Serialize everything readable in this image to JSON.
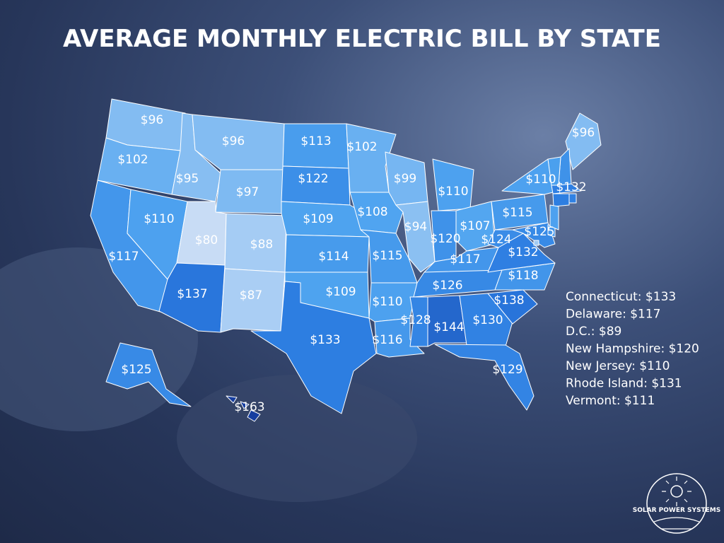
{
  "title": "AVERAGE MONTHLY ELECTRIC BILL BY STATE",
  "states": [
    {
      "label": "$96",
      "value": 96
    },
    {
      "label": "$102",
      "value": 102
    },
    {
      "label": "$117",
      "value": 117
    },
    {
      "label": "$110",
      "value": 110
    },
    {
      "label": "$95",
      "value": 95
    },
    {
      "label": "$96",
      "value": 96
    },
    {
      "label": "$97",
      "value": 97
    },
    {
      "label": "$80",
      "value": 80
    },
    {
      "label": "$88",
      "value": 88
    },
    {
      "label": "$137",
      "value": 137
    },
    {
      "label": "$87",
      "value": 87
    },
    {
      "label": "$113",
      "value": 113
    },
    {
      "label": "$122",
      "value": 122
    },
    {
      "label": "$109",
      "value": 109
    },
    {
      "label": "$114",
      "value": 114
    },
    {
      "label": "$109",
      "value": 109
    },
    {
      "label": "$133",
      "value": 133
    },
    {
      "label": "$102",
      "value": 102
    },
    {
      "label": "$108",
      "value": 108
    },
    {
      "label": "$115",
      "value": 115
    },
    {
      "label": "$110",
      "value": 110
    },
    {
      "label": "$116",
      "value": 116
    },
    {
      "label": "$99",
      "value": 99
    },
    {
      "label": "$94",
      "value": 94
    },
    {
      "label": "$110",
      "value": 110
    },
    {
      "label": "$120",
      "value": 120
    },
    {
      "label": "$107",
      "value": 107
    },
    {
      "label": "$117",
      "value": 117
    },
    {
      "label": "$126",
      "value": 126
    },
    {
      "label": "$128",
      "value": 128
    },
    {
      "label": "$144",
      "value": 144
    },
    {
      "label": "$130",
      "value": 130
    },
    {
      "label": "$129",
      "value": 129
    },
    {
      "label": "$138",
      "value": 138
    },
    {
      "label": "$118",
      "value": 118
    },
    {
      "label": "$132",
      "value": 132
    },
    {
      "label": "$124",
      "value": 124
    },
    {
      "label": "$115",
      "value": 115
    },
    {
      "label": "$110",
      "value": 110
    },
    {
      "label": "$96",
      "value": 96
    },
    {
      "label": "$132",
      "value": 132
    },
    {
      "label": "$125",
      "value": 125
    },
    {
      "label": "$125",
      "value": 125
    },
    {
      "label": "$163",
      "value": 163
    }
  ],
  "small_states": [
    {
      "label": "Connecticut: $133",
      "value": 133
    },
    {
      "label": "Delaware: $117",
      "value": 117
    },
    {
      "label": "D.C.: $89",
      "value": 89
    },
    {
      "label": "New Hampshire: $120",
      "value": 120
    },
    {
      "label": "New Jersey: $110",
      "value": 110
    },
    {
      "label": "Rhode Island: $131",
      "value": 131
    },
    {
      "label": "Vermont: $111",
      "value": 111
    }
  ],
  "logo": "SOLAR POWER SYSTEMS"
}
